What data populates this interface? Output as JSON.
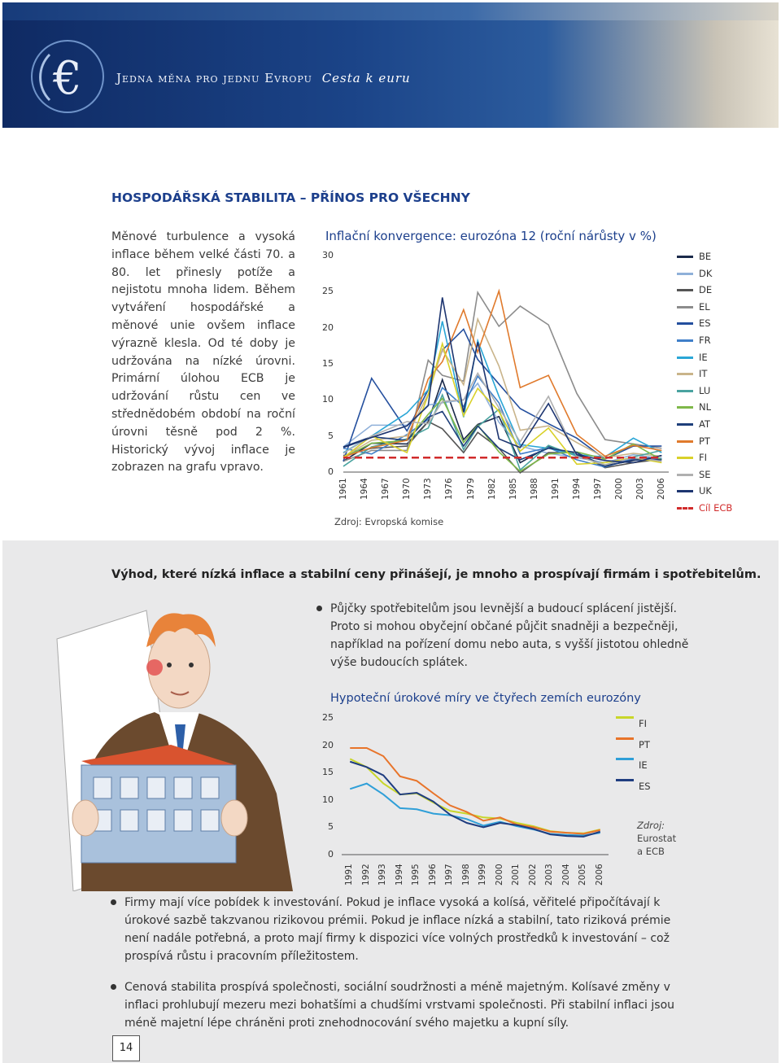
{
  "header": {
    "series_title": "Jedna měna pro jednu Evropu",
    "subtitle": "Cesta k euru"
  },
  "section_title": "HOSPODÁŘSKÁ STABILITA – PŘÍNOS PRO VŠECHNY",
  "intro_text": "Měnové turbulence a vysoká inflace během velké části 70. a 80. let přinesly potíže a nejistotu mnoha lidem. Během vytváření hospodářské a měnové unie ovšem inflace výrazně klesla. Od té doby je udržována na nízké úrovni. Primární úlohou ECB je udržování růstu cen ve střednědobém období na roční úrovni těsně pod 2 %. Historický vývoj inflace je zobrazen na grafu vpravo.",
  "chart1": {
    "title": "Inflační konvergence: eurozóna 12 (roční nárůsty v %)",
    "source": "Zdroj: Evropská komise",
    "yticks": [
      "0",
      "5",
      "10",
      "15",
      "20",
      "25",
      "30"
    ],
    "xticks": [
      "1961",
      "1964",
      "1967",
      "1970",
      "1973",
      "1976",
      "1979",
      "1982",
      "1985",
      "1988",
      "1991",
      "1994",
      "1997",
      "2000",
      "2003",
      "2006"
    ],
    "legend": [
      {
        "label": "BE",
        "color": "#1b2a4a"
      },
      {
        "label": "DK",
        "color": "#8fb0d9"
      },
      {
        "label": "DE",
        "color": "#555555"
      },
      {
        "label": "EL",
        "color": "#8c8c8c"
      },
      {
        "label": "ES",
        "color": "#244f9e"
      },
      {
        "label": "FR",
        "color": "#3f7fc9"
      },
      {
        "label": "IE",
        "color": "#2aa6d6"
      },
      {
        "label": "IT",
        "color": "#c9b48a"
      },
      {
        "label": "LU",
        "color": "#4aa3a0"
      },
      {
        "label": "NL",
        "color": "#7fb84a"
      },
      {
        "label": "AT",
        "color": "#1e3f7a"
      },
      {
        "label": "PT",
        "color": "#e07a2c"
      },
      {
        "label": "FI",
        "color": "#d9d12a"
      },
      {
        "label": "SE",
        "color": "#b0b0b0"
      },
      {
        "label": "UK",
        "color": "#1d3570"
      },
      {
        "label": "Cíl ECB",
        "color": "#d12b2b"
      }
    ]
  },
  "chart_data": [
    {
      "type": "line",
      "title": "Inflační konvergence: eurozóna 12 (roční nárůsty v %)",
      "ylim": [
        0,
        30
      ],
      "x": [
        1961,
        1965,
        1970,
        1973,
        1975,
        1978,
        1980,
        1983,
        1986,
        1990,
        1994,
        1998,
        2002,
        2006
      ],
      "series": [
        {
          "name": "BE",
          "values": [
            1.5,
            4.0,
            3.9,
            7.0,
            12.8,
            4.5,
            6.6,
            7.7,
            1.3,
            3.5,
            2.4,
            0.9,
            1.6,
            2.3
          ]
        },
        {
          "name": "DK",
          "values": [
            3.5,
            6.5,
            6.5,
            9.3,
            9.6,
            10.0,
            12.3,
            6.9,
            3.6,
            2.6,
            2.0,
            1.3,
            2.4,
            1.9
          ]
        },
        {
          "name": "DE",
          "values": [
            2.3,
            3.3,
            3.6,
            7.0,
            6.0,
            2.7,
            5.5,
            3.3,
            -0.1,
            2.7,
            2.7,
            0.6,
            1.3,
            1.8
          ]
        },
        {
          "name": "EL",
          "values": [
            1.5,
            3.0,
            3.0,
            15.5,
            13.4,
            12.6,
            24.9,
            20.2,
            23.0,
            20.4,
            10.9,
            4.5,
            3.9,
            3.3
          ]
        },
        {
          "name": "ES",
          "values": [
            1.5,
            13.0,
            5.7,
            11.4,
            16.9,
            19.8,
            15.6,
            12.2,
            8.8,
            6.7,
            4.7,
            1.8,
            3.6,
            3.6
          ]
        },
        {
          "name": "FR",
          "values": [
            3.3,
            2.5,
            5.2,
            7.3,
            11.7,
            9.1,
            13.3,
            9.6,
            2.5,
            3.4,
            1.7,
            0.7,
            1.9,
            1.9
          ]
        },
        {
          "name": "IE",
          "values": [
            2.7,
            5.0,
            8.2,
            11.4,
            20.9,
            7.6,
            18.2,
            10.5,
            3.8,
            3.3,
            2.4,
            2.1,
            4.7,
            2.7
          ]
        },
        {
          "name": "IT",
          "values": [
            2.1,
            4.4,
            5.0,
            10.8,
            17.0,
            12.1,
            21.2,
            14.7,
            5.8,
            6.4,
            4.1,
            2.0,
            2.6,
            2.2
          ]
        },
        {
          "name": "LU",
          "values": [
            0.8,
            3.5,
            4.6,
            6.1,
            10.7,
            3.1,
            6.3,
            8.7,
            0.3,
            3.7,
            2.2,
            1.0,
            2.1,
            3.0
          ]
        },
        {
          "name": "NL",
          "values": [
            2.0,
            4.0,
            4.4,
            8.0,
            10.2,
            4.1,
            6.5,
            2.8,
            0.1,
            2.5,
            2.8,
            1.8,
            3.9,
            1.7
          ]
        },
        {
          "name": "AT",
          "values": [
            3.5,
            4.9,
            4.4,
            7.6,
            8.4,
            3.6,
            6.4,
            3.3,
            1.7,
            3.3,
            2.7,
            0.8,
            1.7,
            1.7
          ]
        },
        {
          "name": "PT",
          "values": [
            2.1,
            3.4,
            4.4,
            12.9,
            15.3,
            22.5,
            16.6,
            25.1,
            11.7,
            13.4,
            5.2,
            2.2,
            3.7,
            3.0
          ]
        },
        {
          "name": "FI",
          "values": [
            2.0,
            5.0,
            2.7,
            10.7,
            17.8,
            7.8,
            11.6,
            8.4,
            2.9,
            6.1,
            1.1,
            1.3,
            2.0,
            1.3
          ]
        },
        {
          "name": "SE",
          "values": [
            2.6,
            5.0,
            7.0,
            6.7,
            9.8,
            10.0,
            13.7,
            8.9,
            4.2,
            10.5,
            2.2,
            1.0,
            2.0,
            1.5
          ]
        },
        {
          "name": "UK",
          "values": [
            3.4,
            4.8,
            6.4,
            9.2,
            24.2,
            8.3,
            18.0,
            4.6,
            3.4,
            9.5,
            2.4,
            1.6,
            1.3,
            2.3
          ]
        },
        {
          "name": "Cíl ECB",
          "values": [
            2,
            2,
            2,
            2,
            2,
            2,
            2,
            2,
            2,
            2,
            2,
            2,
            2,
            2
          ]
        }
      ]
    },
    {
      "type": "line",
      "title": "Hypoteční úrokové míry ve čtyřech zemích eurozóny",
      "ylim": [
        0,
        25
      ],
      "x": [
        1991,
        1992,
        1993,
        1994,
        1995,
        1996,
        1997,
        1998,
        1999,
        2000,
        2001,
        2002,
        2003,
        2004,
        2005,
        2006
      ],
      "series": [
        {
          "name": "FI",
          "values": [
            17.5,
            16.0,
            13.0,
            11.0,
            11.2,
            9.5,
            8.0,
            7.5,
            6.8,
            6.6,
            5.8,
            5.2,
            4.3,
            4.0,
            3.9,
            4.6
          ]
        },
        {
          "name": "PT",
          "values": [
            19.5,
            19.5,
            18.0,
            14.3,
            13.5,
            11.2,
            9.0,
            7.8,
            6.2,
            6.8,
            5.5,
            5.0,
            4.2,
            4.0,
            3.8,
            4.5
          ]
        },
        {
          "name": "IE",
          "values": [
            12.0,
            13.0,
            11.0,
            8.5,
            8.3,
            7.5,
            7.2,
            6.5,
            5.3,
            6.0,
            5.2,
            4.6,
            3.8,
            3.6,
            3.5,
            4.0
          ]
        },
        {
          "name": "ES",
          "values": [
            17.0,
            16.0,
            14.5,
            11.0,
            11.3,
            9.7,
            7.3,
            5.8,
            5.0,
            5.8,
            5.4,
            4.7,
            3.7,
            3.4,
            3.3,
            4.2
          ]
        }
      ]
    }
  ],
  "benefits_heading": "Výhod, které nízká inflace a stabilní ceny přinášejí, je mnoho a prospívají firmám i spotřebitelům.",
  "bullet1": "Půjčky spotřebitelům jsou levnější a budoucí splácení jistější. Proto si mohou obyčejní občané půjčit snadněji a bezpečněji, například na pořízení domu nebo auta, s vyšší jistotou ohledně výše budoucích splátek.",
  "chart2": {
    "title": "Hypoteční úrokové míry ve čtyřech zemích eurozóny",
    "source_l1": "Zdroj:",
    "source_l2": "Eurostat",
    "source_l3": "a ECB",
    "yticks": [
      "0",
      "5",
      "10",
      "15",
      "20",
      "25"
    ],
    "xticks": [
      "1991",
      "1992",
      "1993",
      "1994",
      "1995",
      "1996",
      "1997",
      "1998",
      "1999",
      "2000",
      "2001",
      "2002",
      "2003",
      "2004",
      "2005",
      "2006"
    ],
    "legend": [
      {
        "label": "FI",
        "color": "#c8d62a"
      },
      {
        "label": "PT",
        "color": "#e8742a"
      },
      {
        "label": "IE",
        "color": "#2f9fd8"
      },
      {
        "label": "ES",
        "color": "#1f3d80"
      }
    ]
  },
  "bullet2": "Firmy mají více pobídek k investování. Pokud je inflace vysoká a kolísá, věřitelé připočítávají k úrokové sazbě takzvanou rizikovou prémii. Pokud je inflace nízká a stabilní, tato riziková prémie není nadále potřebná, a proto mají firmy k dispozici více volných prostředků k investování – což prospívá růstu i pracovním příležitostem.",
  "bullet3": "Cenová stabilita prospívá společnosti, sociální soudržnosti a méně majetným. Kolísavé změny v inflaci prohlubují mezeru mezi bohatšími a chudšími vrstvami společnosti. Při stabilní inflaci jsou méně majetní lépe chráněni proti znehodnocování svého majetku a kupní síly.",
  "page_number": "14",
  "colors": {
    "accent": "#1c3f8c",
    "band": "#e9e9ea"
  }
}
